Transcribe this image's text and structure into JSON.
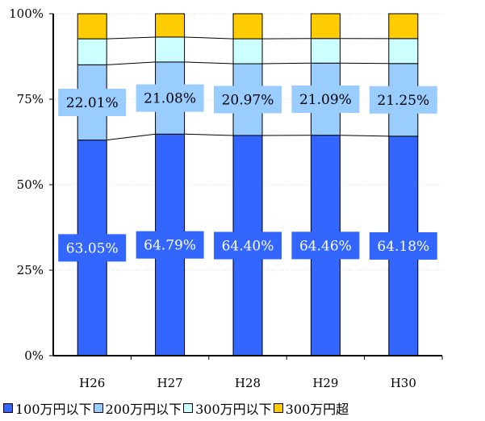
{
  "chart_data": {
    "type": "bar",
    "stacked": true,
    "percent": true,
    "categories": [
      "H26",
      "H27",
      "H28",
      "H29",
      "H30"
    ],
    "series": [
      {
        "name": "100万円以下",
        "color": "#3366ff",
        "values": [
          63.05,
          64.79,
          64.4,
          64.46,
          64.18
        ],
        "labels": [
          "63.05%",
          "64.79%",
          "64.40%",
          "64.46%",
          "64.18%"
        ]
      },
      {
        "name": "200万円以下",
        "color": "#99ccff",
        "values": [
          22.01,
          21.08,
          20.97,
          21.09,
          21.25
        ],
        "labels": [
          "22.01%",
          "21.08%",
          "20.97%",
          "21.09%",
          "21.25%"
        ]
      },
      {
        "name": "300万円以下",
        "color": "#ccffff",
        "values": [
          7.6,
          7.3,
          7.3,
          7.2,
          7.3
        ]
      },
      {
        "name": "300万円超",
        "color": "#ffcc00",
        "values": [
          7.34,
          6.83,
          7.33,
          7.25,
          7.27
        ]
      }
    ],
    "y_ticks": [
      "0%",
      "25%",
      "50%",
      "75%",
      "100%"
    ],
    "ylim": [
      0,
      100
    ],
    "grid": true,
    "legend_position": "bottom"
  }
}
